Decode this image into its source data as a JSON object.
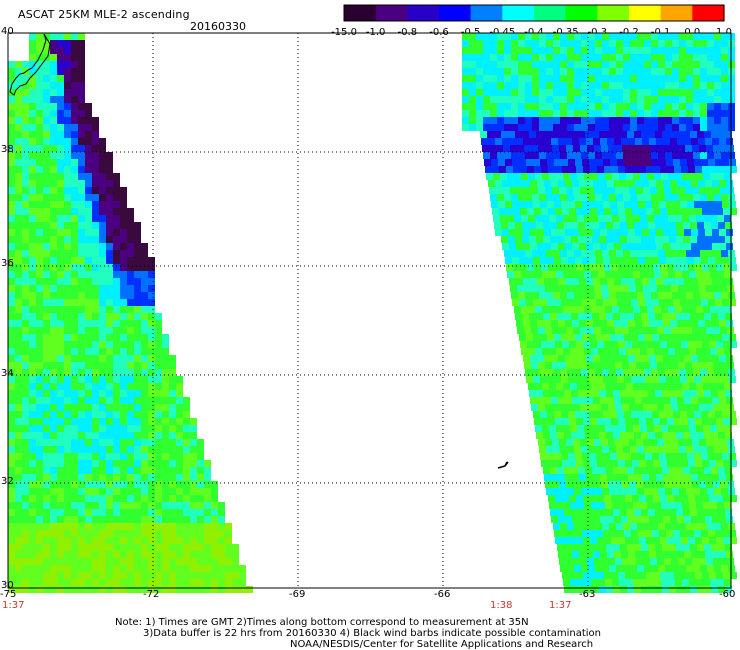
{
  "header": {
    "title": "ASCAT 25KM MLE-2 ascending",
    "date": "20160330"
  },
  "colorbar": {
    "labels": [
      "-15.0",
      "-1.0",
      "-0.8",
      "-0.6",
      "-0.5",
      "-0.45",
      "-0.4",
      "-0.35",
      "-0.3",
      "-0.2",
      "-0.1",
      "0.0",
      "1.0"
    ],
    "colors": [
      "#2a0030",
      "#4b0082",
      "#2800c8",
      "#0000ff",
      "#0080ff",
      "#00ffff",
      "#00ff80",
      "#00ff00",
      "#80ff00",
      "#ffff00",
      "#ffa500",
      "#ff0000"
    ]
  },
  "axes": {
    "lat_labels": [
      "40",
      "38",
      "36",
      "34",
      "32",
      "30"
    ],
    "lon_labels": [
      "-75",
      "-72",
      "-69",
      "-66",
      "-63",
      "-60"
    ],
    "times": [
      "1:37",
      "1:38",
      "1:37"
    ]
  },
  "notes": {
    "line1": "Note: 1) Times are GMT 2)Times along bottom correspond to measurement at 35N",
    "line2": "3)Data buffer is 22 hrs from 20160330 4) Black wind barbs indicate possible contamination",
    "line3": "NOAA/NESDIS/Center for Satellite Applications and Research"
  }
}
